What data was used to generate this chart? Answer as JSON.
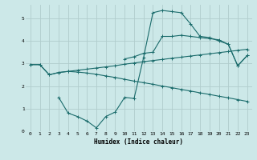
{
  "xlabel": "Humidex (Indice chaleur)",
  "bg_color": "#cce8e8",
  "grid_color": "#b0cccc",
  "line_color": "#1a6b6b",
  "xlim": [
    -0.5,
    23.5
  ],
  "ylim": [
    0,
    5.6
  ],
  "xticks": [
    0,
    1,
    2,
    3,
    4,
    5,
    6,
    7,
    8,
    9,
    10,
    11,
    12,
    13,
    14,
    15,
    16,
    17,
    18,
    19,
    20,
    21,
    22,
    23
  ],
  "yticks": [
    0,
    1,
    2,
    3,
    4,
    5
  ],
  "lines": [
    {
      "x": [
        0,
        1,
        2,
        3,
        4,
        5,
        6,
        7,
        8,
        9,
        10,
        11,
        12,
        13,
        14,
        15,
        16,
        17,
        18,
        19,
        20,
        21,
        22,
        23
      ],
      "y": [
        2.95,
        2.95,
        2.5,
        2.6,
        2.65,
        2.7,
        2.75,
        2.8,
        2.85,
        2.9,
        2.97,
        3.02,
        3.08,
        3.13,
        3.18,
        3.23,
        3.28,
        3.33,
        3.38,
        3.43,
        3.48,
        3.53,
        3.58,
        3.63
      ]
    },
    {
      "x": [
        0,
        1,
        2,
        3,
        4,
        5,
        6,
        7,
        8,
        9,
        10,
        11,
        12,
        13,
        14,
        15,
        16,
        17,
        18,
        19,
        20,
        21,
        22,
        23
      ],
      "y": [
        2.95,
        2.95,
        2.5,
        2.6,
        2.65,
        2.62,
        2.58,
        2.52,
        2.45,
        2.38,
        2.3,
        2.22,
        2.15,
        2.08,
        2.0,
        1.93,
        1.85,
        1.78,
        1.7,
        1.63,
        1.55,
        1.48,
        1.4,
        1.32
      ]
    },
    {
      "x": [
        3,
        4,
        5,
        6,
        7,
        8,
        9,
        10,
        11,
        12,
        13,
        14,
        15,
        16,
        17,
        18,
        19,
        20,
        21,
        22,
        23
      ],
      "y": [
        1.5,
        0.8,
        0.65,
        0.45,
        0.15,
        0.65,
        0.85,
        1.5,
        1.45,
        3.25,
        5.25,
        5.35,
        5.3,
        5.25,
        4.75,
        4.2,
        4.15,
        4.0,
        3.85,
        2.9,
        3.35
      ]
    },
    {
      "x": [
        10,
        11,
        12,
        13,
        14,
        15,
        16,
        17,
        18,
        19,
        20,
        21,
        22,
        23
      ],
      "y": [
        3.2,
        3.3,
        3.45,
        3.5,
        4.2,
        4.2,
        4.25,
        4.2,
        4.15,
        4.1,
        4.05,
        3.85,
        2.9,
        3.35
      ]
    }
  ]
}
